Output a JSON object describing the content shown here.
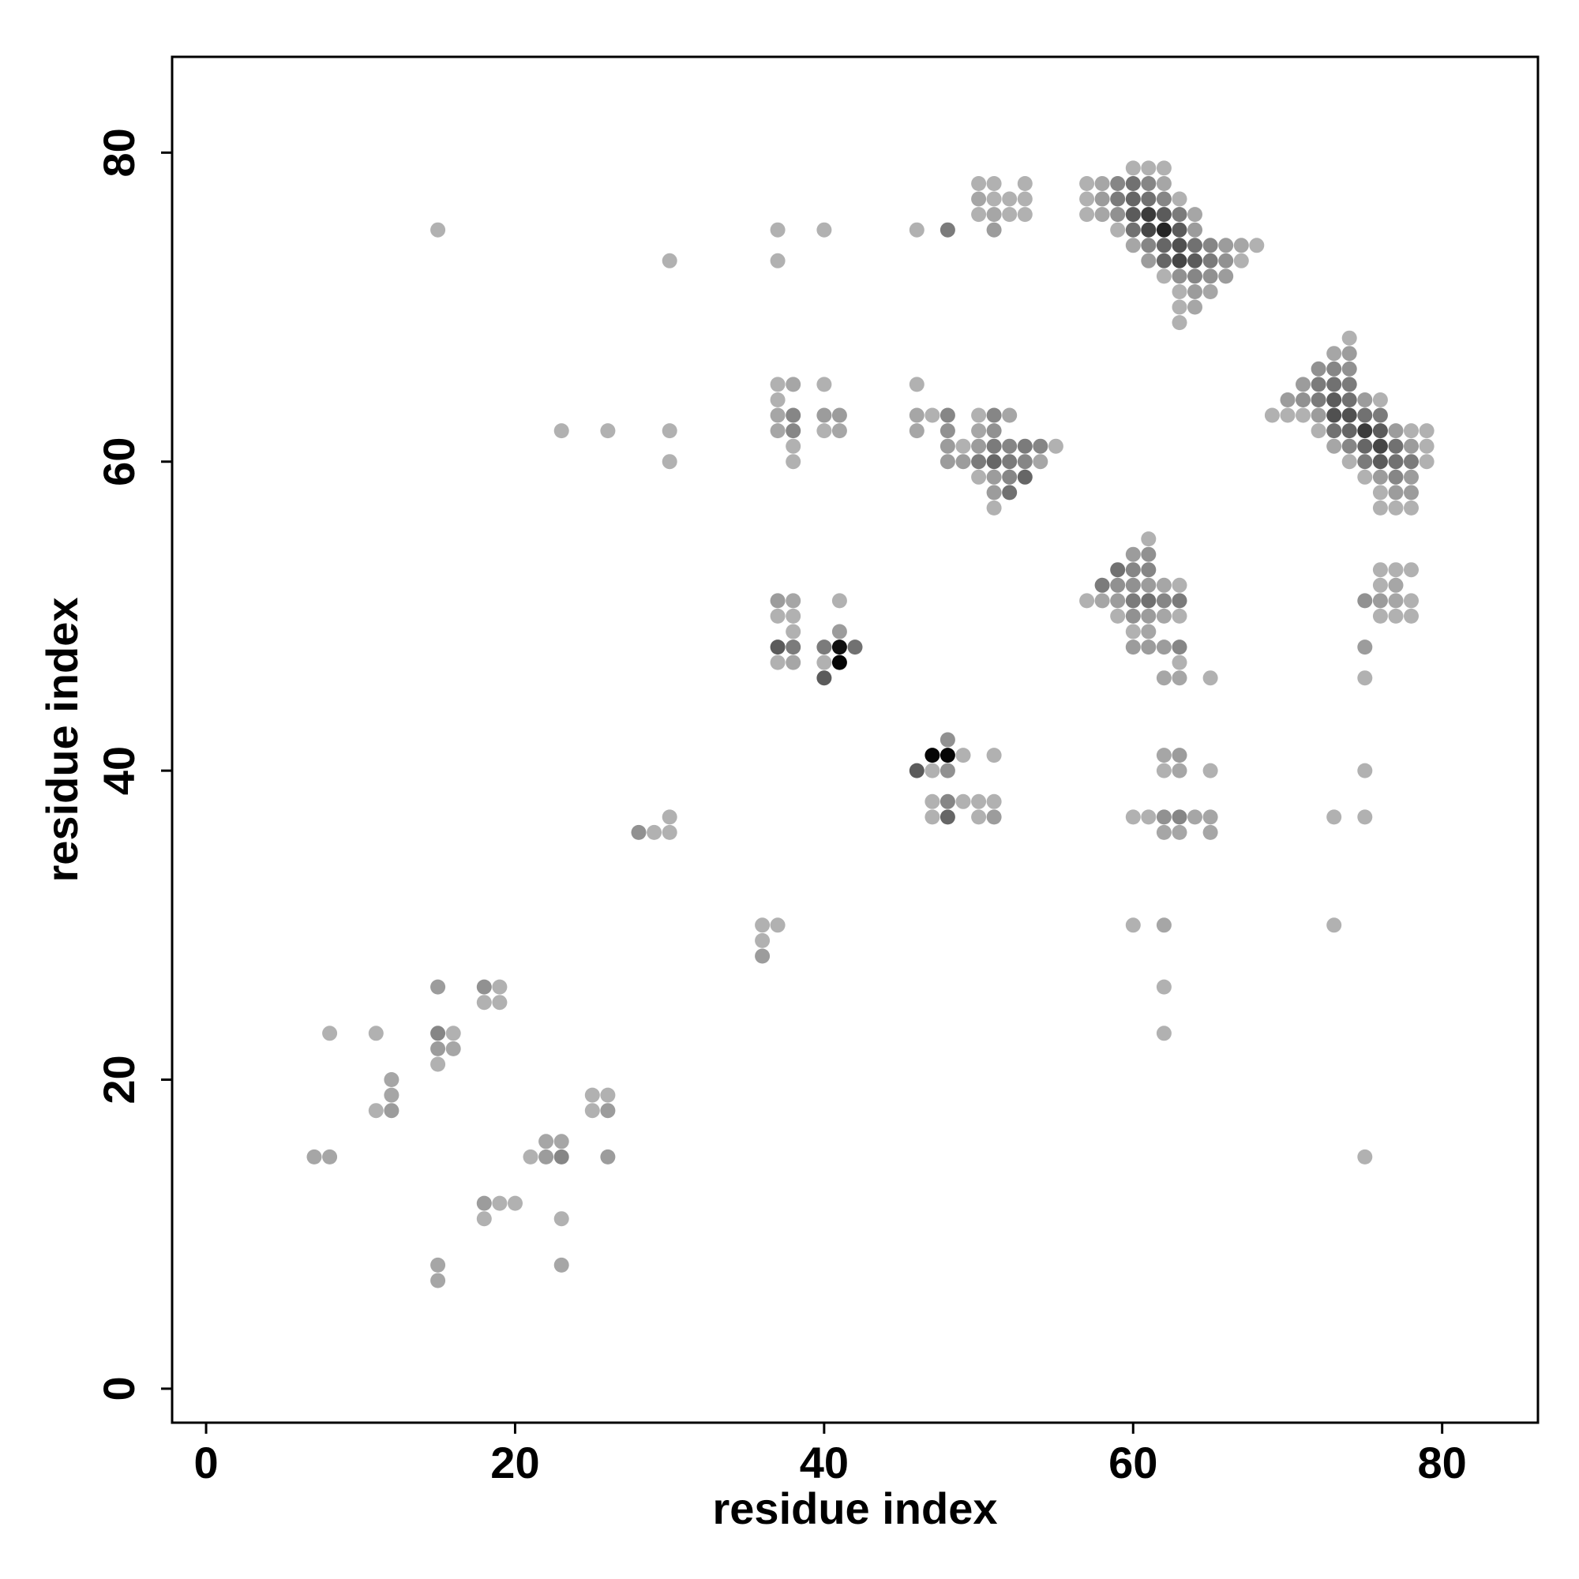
{
  "chart_data": {
    "type": "scatter",
    "title": "",
    "xlabel": "residue index",
    "ylabel": "residue index",
    "xlim": [
      -2.2,
      86.2
    ],
    "ylim": [
      -2.2,
      86.2
    ],
    "xticks": [
      0,
      20,
      40,
      60,
      80
    ],
    "yticks": [
      0,
      20,
      40,
      60,
      80
    ],
    "grid": false,
    "legend": "none",
    "value_scale": "contact strength 0-1 (light grey = weak, black = strong)",
    "points": [
      [
        15,
        75,
        0.2
      ],
      [
        30,
        73,
        0.2
      ],
      [
        37,
        75,
        0.2
      ],
      [
        37,
        73,
        0.2
      ],
      [
        40,
        75,
        0.2
      ],
      [
        46,
        75,
        0.2
      ],
      [
        48,
        75,
        0.45
      ],
      [
        50,
        78,
        0.2
      ],
      [
        51,
        78,
        0.2
      ],
      [
        53,
        78,
        0.2
      ],
      [
        50,
        77,
        0.25
      ],
      [
        51,
        77,
        0.2
      ],
      [
        52,
        77,
        0.2
      ],
      [
        53,
        77,
        0.2
      ],
      [
        50,
        76,
        0.2
      ],
      [
        51,
        76,
        0.25
      ],
      [
        52,
        76,
        0.2
      ],
      [
        53,
        76,
        0.2
      ],
      [
        51,
        75,
        0.3
      ],
      [
        60,
        79,
        0.2
      ],
      [
        61,
        79,
        0.2
      ],
      [
        62,
        79,
        0.2
      ],
      [
        57,
        78,
        0.2
      ],
      [
        58,
        78,
        0.25
      ],
      [
        59,
        78,
        0.4
      ],
      [
        60,
        78,
        0.5
      ],
      [
        61,
        78,
        0.4
      ],
      [
        62,
        78,
        0.25
      ],
      [
        57,
        77,
        0.2
      ],
      [
        58,
        77,
        0.3
      ],
      [
        59,
        77,
        0.45
      ],
      [
        60,
        77,
        0.55
      ],
      [
        61,
        77,
        0.5
      ],
      [
        62,
        77,
        0.4
      ],
      [
        63,
        77,
        0.2
      ],
      [
        57,
        76,
        0.2
      ],
      [
        58,
        76,
        0.25
      ],
      [
        59,
        76,
        0.35
      ],
      [
        60,
        76,
        0.6
      ],
      [
        61,
        76,
        0.75
      ],
      [
        62,
        76,
        0.6
      ],
      [
        63,
        76,
        0.45
      ],
      [
        64,
        76,
        0.25
      ],
      [
        59,
        75,
        0.2
      ],
      [
        60,
        75,
        0.5
      ],
      [
        61,
        75,
        0.7
      ],
      [
        62,
        75,
        0.85
      ],
      [
        63,
        75,
        0.6
      ],
      [
        64,
        75,
        0.3
      ],
      [
        60,
        74,
        0.25
      ],
      [
        61,
        74,
        0.4
      ],
      [
        62,
        74,
        0.55
      ],
      [
        63,
        74,
        0.65
      ],
      [
        64,
        74,
        0.5
      ],
      [
        65,
        74,
        0.4
      ],
      [
        66,
        74,
        0.3
      ],
      [
        67,
        74,
        0.25
      ],
      [
        68,
        74,
        0.2
      ],
      [
        61,
        73,
        0.3
      ],
      [
        62,
        73,
        0.55
      ],
      [
        63,
        73,
        0.7
      ],
      [
        64,
        73,
        0.6
      ],
      [
        65,
        73,
        0.45
      ],
      [
        66,
        73,
        0.35
      ],
      [
        67,
        73,
        0.2
      ],
      [
        62,
        72,
        0.2
      ],
      [
        63,
        72,
        0.35
      ],
      [
        64,
        72,
        0.4
      ],
      [
        65,
        72,
        0.35
      ],
      [
        66,
        72,
        0.3
      ],
      [
        63,
        71,
        0.2
      ],
      [
        64,
        71,
        0.3
      ],
      [
        65,
        71,
        0.25
      ],
      [
        63,
        70,
        0.2
      ],
      [
        64,
        70,
        0.25
      ],
      [
        63,
        69,
        0.2
      ],
      [
        74,
        68,
        0.2
      ],
      [
        73,
        67,
        0.25
      ],
      [
        74,
        67,
        0.3
      ],
      [
        72,
        66,
        0.35
      ],
      [
        73,
        66,
        0.4
      ],
      [
        74,
        66,
        0.35
      ],
      [
        71,
        65,
        0.3
      ],
      [
        72,
        65,
        0.45
      ],
      [
        73,
        65,
        0.5
      ],
      [
        74,
        65,
        0.45
      ],
      [
        70,
        64,
        0.3
      ],
      [
        71,
        64,
        0.35
      ],
      [
        72,
        64,
        0.45
      ],
      [
        73,
        64,
        0.6
      ],
      [
        74,
        64,
        0.5
      ],
      [
        75,
        64,
        0.3
      ],
      [
        76,
        64,
        0.2
      ],
      [
        69,
        63,
        0.2
      ],
      [
        70,
        63,
        0.2
      ],
      [
        71,
        63,
        0.2
      ],
      [
        72,
        63,
        0.3
      ],
      [
        73,
        63,
        0.65
      ],
      [
        74,
        63,
        0.65
      ],
      [
        75,
        63,
        0.5
      ],
      [
        76,
        63,
        0.45
      ],
      [
        72,
        62,
        0.2
      ],
      [
        73,
        62,
        0.5
      ],
      [
        74,
        62,
        0.55
      ],
      [
        75,
        62,
        0.75
      ],
      [
        76,
        62,
        0.6
      ],
      [
        77,
        62,
        0.3
      ],
      [
        78,
        62,
        0.2
      ],
      [
        79,
        62,
        0.2
      ],
      [
        73,
        61,
        0.25
      ],
      [
        74,
        61,
        0.4
      ],
      [
        75,
        61,
        0.55
      ],
      [
        76,
        61,
        0.7
      ],
      [
        77,
        61,
        0.5
      ],
      [
        78,
        61,
        0.3
      ],
      [
        79,
        61,
        0.2
      ],
      [
        74,
        60,
        0.2
      ],
      [
        75,
        60,
        0.45
      ],
      [
        76,
        60,
        0.6
      ],
      [
        77,
        60,
        0.5
      ],
      [
        78,
        60,
        0.45
      ],
      [
        79,
        60,
        0.2
      ],
      [
        75,
        59,
        0.2
      ],
      [
        76,
        59,
        0.3
      ],
      [
        77,
        59,
        0.4
      ],
      [
        78,
        59,
        0.3
      ],
      [
        76,
        58,
        0.2
      ],
      [
        77,
        58,
        0.3
      ],
      [
        78,
        58,
        0.3
      ],
      [
        76,
        57,
        0.2
      ],
      [
        77,
        57,
        0.2
      ],
      [
        78,
        57,
        0.2
      ],
      [
        37,
        65,
        0.2
      ],
      [
        38,
        65,
        0.25
      ],
      [
        40,
        65,
        0.2
      ],
      [
        37,
        64,
        0.2
      ],
      [
        37,
        63,
        0.25
      ],
      [
        38,
        63,
        0.4
      ],
      [
        40,
        63,
        0.3
      ],
      [
        41,
        63,
        0.3
      ],
      [
        37,
        62,
        0.25
      ],
      [
        38,
        62,
        0.4
      ],
      [
        40,
        62,
        0.2
      ],
      [
        41,
        62,
        0.25
      ],
      [
        38,
        61,
        0.2
      ],
      [
        38,
        60,
        0.2
      ],
      [
        23,
        62,
        0.2
      ],
      [
        26,
        62,
        0.2
      ],
      [
        30,
        62,
        0.2
      ],
      [
        30,
        60,
        0.2
      ],
      [
        46,
        65,
        0.2
      ],
      [
        46,
        63,
        0.25
      ],
      [
        47,
        63,
        0.2
      ],
      [
        48,
        63,
        0.4
      ],
      [
        50,
        63,
        0.2
      ],
      [
        51,
        63,
        0.4
      ],
      [
        52,
        63,
        0.25
      ],
      [
        46,
        62,
        0.25
      ],
      [
        48,
        62,
        0.35
      ],
      [
        50,
        62,
        0.25
      ],
      [
        51,
        62,
        0.35
      ],
      [
        48,
        61,
        0.3
      ],
      [
        49,
        61,
        0.2
      ],
      [
        50,
        61,
        0.3
      ],
      [
        51,
        61,
        0.45
      ],
      [
        52,
        61,
        0.4
      ],
      [
        53,
        61,
        0.45
      ],
      [
        54,
        61,
        0.4
      ],
      [
        55,
        61,
        0.2
      ],
      [
        48,
        60,
        0.3
      ],
      [
        49,
        60,
        0.3
      ],
      [
        50,
        60,
        0.45
      ],
      [
        51,
        60,
        0.55
      ],
      [
        52,
        60,
        0.45
      ],
      [
        53,
        60,
        0.4
      ],
      [
        54,
        60,
        0.25
      ],
      [
        50,
        59,
        0.2
      ],
      [
        51,
        59,
        0.3
      ],
      [
        52,
        59,
        0.4
      ],
      [
        53,
        59,
        0.55
      ],
      [
        51,
        58,
        0.3
      ],
      [
        52,
        58,
        0.5
      ],
      [
        51,
        57,
        0.2
      ],
      [
        61,
        55,
        0.2
      ],
      [
        60,
        54,
        0.3
      ],
      [
        61,
        54,
        0.35
      ],
      [
        59,
        53,
        0.5
      ],
      [
        60,
        53,
        0.4
      ],
      [
        61,
        53,
        0.4
      ],
      [
        58,
        52,
        0.45
      ],
      [
        59,
        52,
        0.35
      ],
      [
        60,
        52,
        0.35
      ],
      [
        61,
        52,
        0.3
      ],
      [
        62,
        52,
        0.25
      ],
      [
        63,
        52,
        0.2
      ],
      [
        57,
        51,
        0.2
      ],
      [
        58,
        51,
        0.25
      ],
      [
        59,
        51,
        0.3
      ],
      [
        60,
        51,
        0.45
      ],
      [
        61,
        51,
        0.5
      ],
      [
        62,
        51,
        0.4
      ],
      [
        63,
        51,
        0.45
      ],
      [
        59,
        50,
        0.2
      ],
      [
        60,
        50,
        0.35
      ],
      [
        61,
        50,
        0.3
      ],
      [
        62,
        50,
        0.25
      ],
      [
        63,
        50,
        0.2
      ],
      [
        60,
        49,
        0.2
      ],
      [
        61,
        49,
        0.25
      ],
      [
        60,
        48,
        0.3
      ],
      [
        61,
        48,
        0.3
      ],
      [
        62,
        48,
        0.3
      ],
      [
        63,
        48,
        0.4
      ],
      [
        63,
        47,
        0.2
      ],
      [
        62,
        46,
        0.25
      ],
      [
        63,
        46,
        0.25
      ],
      [
        65,
        46,
        0.2
      ],
      [
        76,
        53,
        0.2
      ],
      [
        77,
        53,
        0.2
      ],
      [
        78,
        53,
        0.2
      ],
      [
        76,
        52,
        0.2
      ],
      [
        77,
        52,
        0.25
      ],
      [
        75,
        51,
        0.35
      ],
      [
        76,
        51,
        0.3
      ],
      [
        77,
        51,
        0.25
      ],
      [
        78,
        51,
        0.2
      ],
      [
        76,
        50,
        0.2
      ],
      [
        77,
        50,
        0.2
      ],
      [
        78,
        50,
        0.2
      ],
      [
        75,
        48,
        0.3
      ],
      [
        75,
        46,
        0.2
      ],
      [
        37,
        51,
        0.3
      ],
      [
        38,
        51,
        0.25
      ],
      [
        41,
        51,
        0.2
      ],
      [
        37,
        50,
        0.2
      ],
      [
        38,
        50,
        0.2
      ],
      [
        38,
        49,
        0.2
      ],
      [
        41,
        49,
        0.3
      ],
      [
        37,
        48,
        0.6
      ],
      [
        38,
        48,
        0.45
      ],
      [
        40,
        48,
        0.45
      ],
      [
        41,
        48,
        0.95
      ],
      [
        42,
        48,
        0.5
      ],
      [
        37,
        47,
        0.2
      ],
      [
        38,
        47,
        0.25
      ],
      [
        40,
        47,
        0.2
      ],
      [
        41,
        47,
        1.0
      ],
      [
        40,
        46,
        0.6
      ],
      [
        48,
        42,
        0.35
      ],
      [
        47,
        41,
        1.0
      ],
      [
        48,
        41,
        1.0
      ],
      [
        49,
        41,
        0.2
      ],
      [
        51,
        41,
        0.2
      ],
      [
        46,
        40,
        0.6
      ],
      [
        47,
        40,
        0.2
      ],
      [
        48,
        40,
        0.35
      ],
      [
        47,
        38,
        0.2
      ],
      [
        48,
        38,
        0.4
      ],
      [
        49,
        38,
        0.2
      ],
      [
        50,
        38,
        0.2
      ],
      [
        51,
        38,
        0.2
      ],
      [
        47,
        37,
        0.2
      ],
      [
        48,
        37,
        0.55
      ],
      [
        50,
        37,
        0.2
      ],
      [
        51,
        37,
        0.3
      ],
      [
        30,
        37,
        0.2
      ],
      [
        28,
        36,
        0.35
      ],
      [
        29,
        36,
        0.2
      ],
      [
        30,
        36,
        0.2
      ],
      [
        62,
        41,
        0.25
      ],
      [
        63,
        41,
        0.3
      ],
      [
        62,
        40,
        0.2
      ],
      [
        63,
        40,
        0.25
      ],
      [
        65,
        40,
        0.2
      ],
      [
        60,
        37,
        0.2
      ],
      [
        61,
        37,
        0.2
      ],
      [
        62,
        37,
        0.35
      ],
      [
        63,
        37,
        0.4
      ],
      [
        64,
        37,
        0.25
      ],
      [
        65,
        37,
        0.25
      ],
      [
        62,
        36,
        0.25
      ],
      [
        63,
        36,
        0.25
      ],
      [
        65,
        36,
        0.25
      ],
      [
        75,
        40,
        0.2
      ],
      [
        73,
        37,
        0.2
      ],
      [
        75,
        37,
        0.2
      ],
      [
        36,
        30,
        0.2
      ],
      [
        37,
        30,
        0.2
      ],
      [
        36,
        29,
        0.2
      ],
      [
        36,
        28,
        0.3
      ],
      [
        60,
        30,
        0.2
      ],
      [
        62,
        30,
        0.25
      ],
      [
        62,
        26,
        0.2
      ],
      [
        62,
        23,
        0.2
      ],
      [
        73,
        30,
        0.2
      ],
      [
        75,
        15,
        0.2
      ],
      [
        15,
        26,
        0.3
      ],
      [
        18,
        26,
        0.35
      ],
      [
        19,
        26,
        0.2
      ],
      [
        18,
        25,
        0.2
      ],
      [
        19,
        25,
        0.2
      ],
      [
        8,
        23,
        0.2
      ],
      [
        11,
        23,
        0.2
      ],
      [
        15,
        23,
        0.4
      ],
      [
        16,
        23,
        0.2
      ],
      [
        15,
        22,
        0.3
      ],
      [
        16,
        22,
        0.25
      ],
      [
        15,
        21,
        0.2
      ],
      [
        12,
        20,
        0.25
      ],
      [
        12,
        19,
        0.25
      ],
      [
        11,
        18,
        0.2
      ],
      [
        12,
        18,
        0.3
      ],
      [
        25,
        19,
        0.2
      ],
      [
        26,
        19,
        0.2
      ],
      [
        25,
        18,
        0.2
      ],
      [
        26,
        18,
        0.3
      ],
      [
        22,
        16,
        0.25
      ],
      [
        23,
        16,
        0.25
      ],
      [
        7,
        15,
        0.25
      ],
      [
        8,
        15,
        0.25
      ],
      [
        21,
        15,
        0.2
      ],
      [
        22,
        15,
        0.3
      ],
      [
        23,
        15,
        0.4
      ],
      [
        26,
        15,
        0.3
      ],
      [
        18,
        12,
        0.3
      ],
      [
        19,
        12,
        0.2
      ],
      [
        20,
        12,
        0.2
      ],
      [
        18,
        11,
        0.2
      ],
      [
        23,
        11,
        0.2
      ],
      [
        15,
        8,
        0.25
      ],
      [
        23,
        8,
        0.25
      ],
      [
        15,
        7,
        0.25
      ]
    ]
  }
}
